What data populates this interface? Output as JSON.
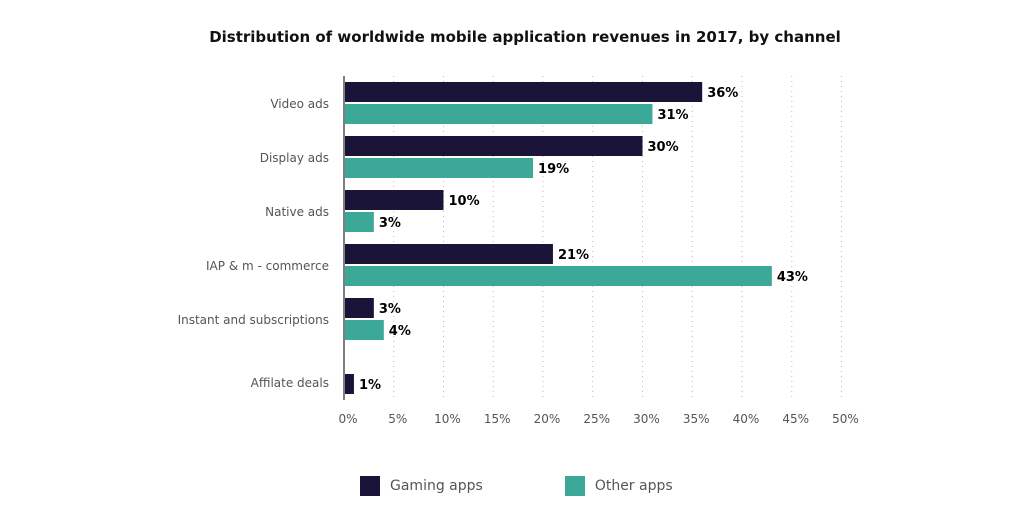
{
  "chart_data": {
    "type": "bar",
    "orientation": "horizontal",
    "title": "Distribution of worldwide mobile application revenues in 2017, by channel",
    "categories": [
      "Video ads",
      "Display ads",
      "Native ads",
      "IAP & m - commerce",
      "Instant and subscriptions",
      "Affilate deals"
    ],
    "series": [
      {
        "name": "Gaming apps",
        "color": "#1a1538",
        "values": [
          36,
          30,
          10,
          21,
          3,
          1
        ],
        "labels": [
          "36%",
          "30%",
          "10%",
          "21%",
          "3%",
          "1%"
        ]
      },
      {
        "name": "Other apps",
        "color": "#3ba898",
        "values": [
          31,
          19,
          3,
          43,
          4,
          null
        ],
        "labels": [
          "31%",
          "19%",
          "3%",
          "43%",
          "4%",
          ""
        ]
      }
    ],
    "xlim": [
      0,
      50
    ],
    "xticks": [
      "0%",
      "5%",
      "10%",
      "15%",
      "20%",
      "25%",
      "30%",
      "35%",
      "40%",
      "45%",
      "50%"
    ],
    "grid": true,
    "legend_position": "bottom"
  }
}
